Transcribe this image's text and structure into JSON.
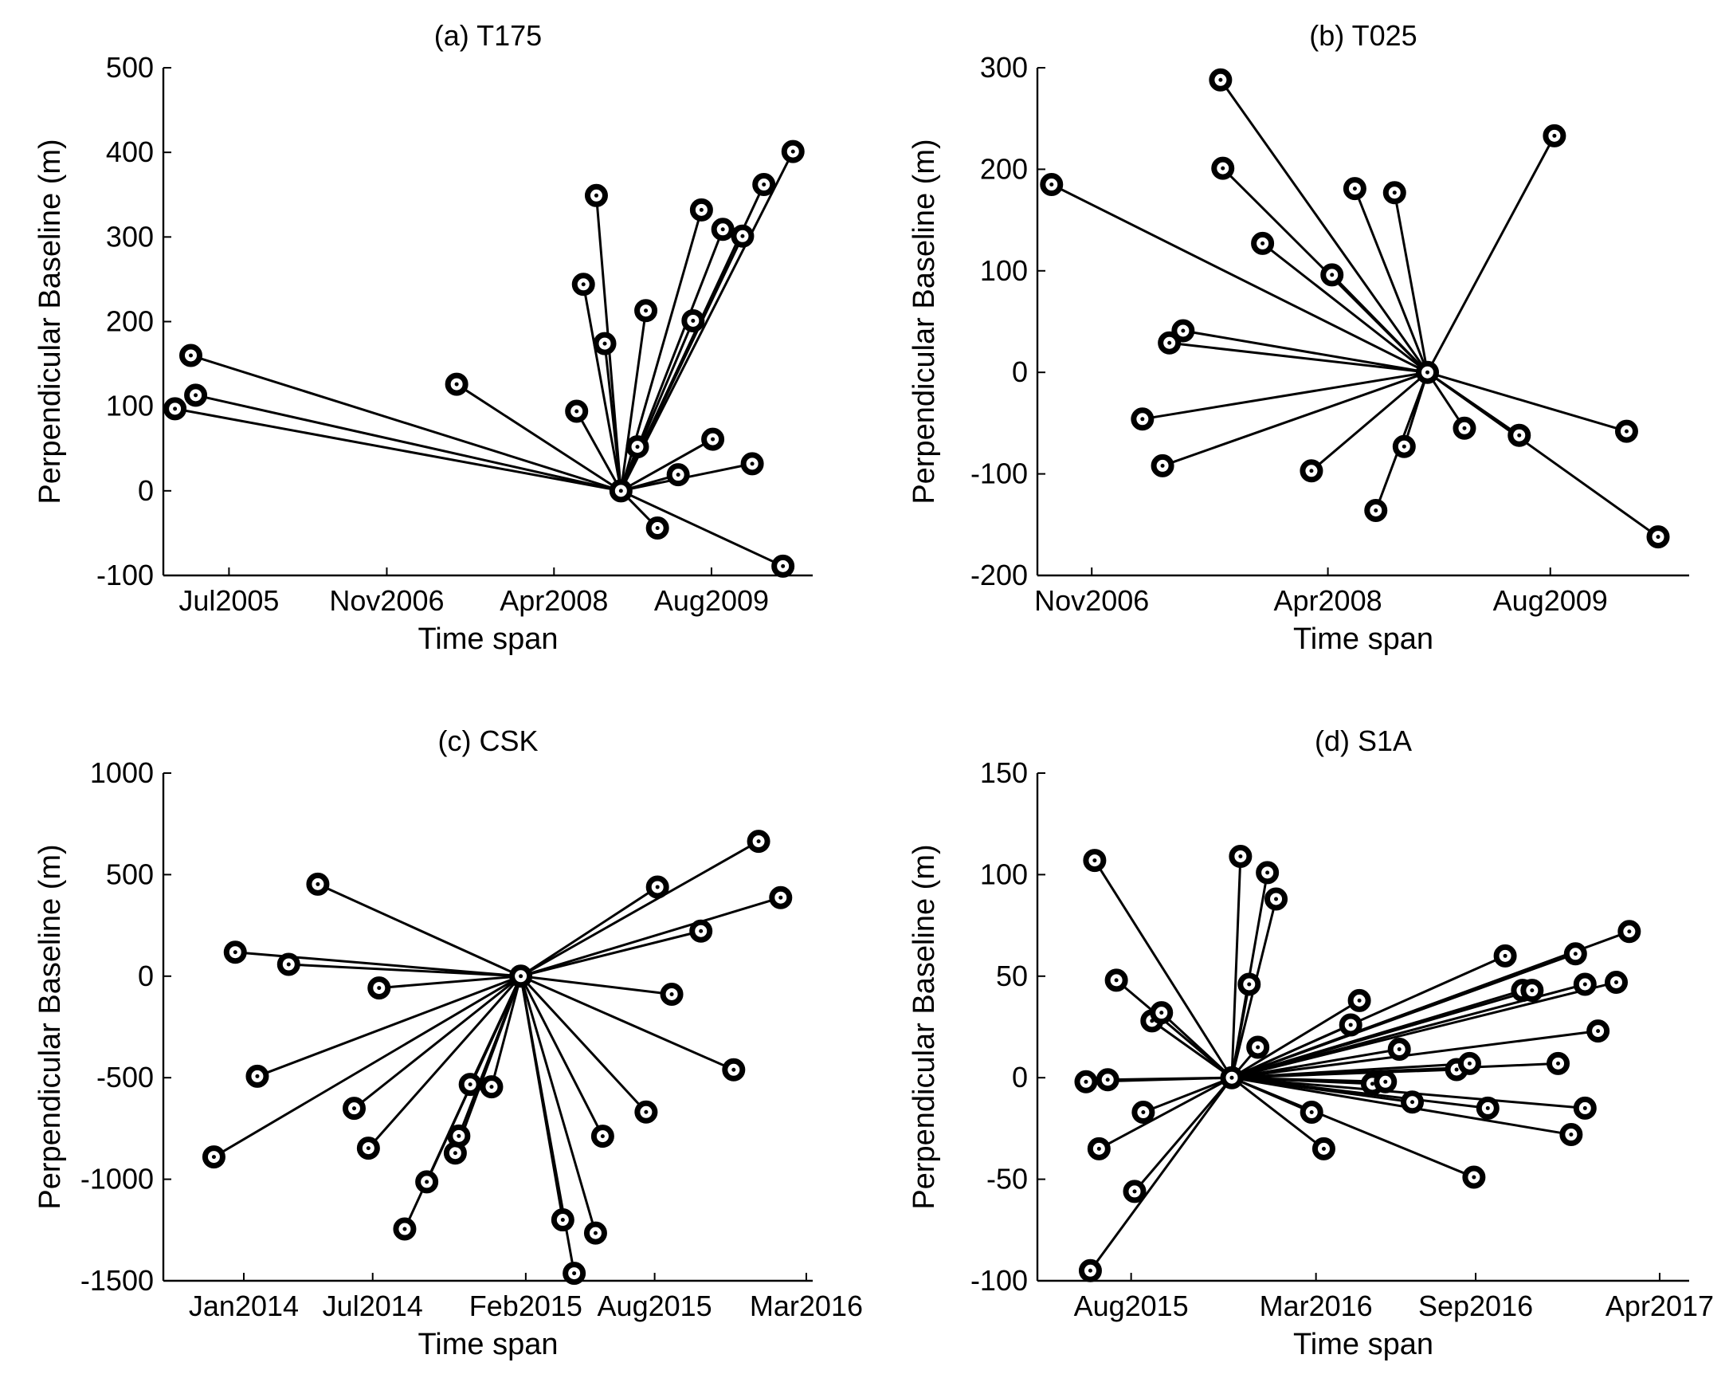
{
  "chart_data": [
    {
      "type": "scatter",
      "title": "(a) T175",
      "xlabel": "Time span",
      "ylabel": "Perpendicular Baseline (m)",
      "xticks": [
        "2005-07-01",
        "2006-11-01",
        "2008-04-01",
        "2009-08-01"
      ],
      "xtick_labels": [
        "Jul2005",
        "Nov2006",
        "Apr2008",
        "Aug2009"
      ],
      "xlim": [
        "2004-12-10",
        "2010-06-10"
      ],
      "ylim": [
        -100,
        500
      ],
      "yticks": [
        -100,
        0,
        100,
        200,
        300,
        400,
        500
      ],
      "ytick_labels": [
        "-100",
        "0",
        "100",
        "200",
        "300",
        "400",
        "500"
      ],
      "master": {
        "x": "2008-10-25",
        "y": 0
      },
      "points": [
        {
          "x": "2005-01-15",
          "y": 97
        },
        {
          "x": "2005-03-20",
          "y": 113
        },
        {
          "x": "2005-03-05",
          "y": 160
        },
        {
          "x": "2007-06-05",
          "y": 126
        },
        {
          "x": "2008-06-10",
          "y": 94
        },
        {
          "x": "2008-07-01",
          "y": 244
        },
        {
          "x": "2008-08-10",
          "y": 349
        },
        {
          "x": "2008-09-05",
          "y": 174
        },
        {
          "x": "2008-12-15",
          "y": 52
        },
        {
          "x": "2009-01-10",
          "y": 213
        },
        {
          "x": "2009-02-15",
          "y": -44
        },
        {
          "x": "2009-04-20",
          "y": 19
        },
        {
          "x": "2009-06-05",
          "y": 201
        },
        {
          "x": "2009-07-01",
          "y": 332
        },
        {
          "x": "2009-08-05",
          "y": 61
        },
        {
          "x": "2009-09-05",
          "y": 309
        },
        {
          "x": "2009-11-05",
          "y": 301
        },
        {
          "x": "2009-12-05",
          "y": 32
        },
        {
          "x": "2010-01-10",
          "y": 362
        },
        {
          "x": "2010-03-10",
          "y": -89
        },
        {
          "x": "2010-04-10",
          "y": 401
        }
      ]
    },
    {
      "type": "scatter",
      "title": "(b) T025",
      "xlabel": "Time span",
      "ylabel": "Perpendicular Baseline (m)",
      "xticks": [
        "2006-11-01",
        "2008-04-01",
        "2009-08-01"
      ],
      "xtick_labels": [
        "Nov2006",
        "Apr2008",
        "Aug2009"
      ],
      "xlim": [
        "2006-07-05",
        "2010-06-01"
      ],
      "ylim": [
        -200,
        300
      ],
      "yticks": [
        -200,
        -100,
        0,
        100,
        200,
        300
      ],
      "ytick_labels": [
        "-200",
        "-100",
        "0",
        "100",
        "200",
        "300"
      ],
      "master": {
        "x": "2008-11-05",
        "y": 0
      },
      "points": [
        {
          "x": "2006-08-05",
          "y": 185
        },
        {
          "x": "2007-02-20",
          "y": -46
        },
        {
          "x": "2007-04-05",
          "y": -92
        },
        {
          "x": "2007-04-20",
          "y": 29
        },
        {
          "x": "2007-05-20",
          "y": 41
        },
        {
          "x": "2007-08-10",
          "y": 288
        },
        {
          "x": "2007-08-15",
          "y": 201
        },
        {
          "x": "2007-11-10",
          "y": 127
        },
        {
          "x": "2008-02-25",
          "y": -97
        },
        {
          "x": "2008-04-10",
          "y": 96
        },
        {
          "x": "2008-05-30",
          "y": 181
        },
        {
          "x": "2008-07-15",
          "y": -136
        },
        {
          "x": "2008-08-25",
          "y": 177
        },
        {
          "x": "2008-09-15",
          "y": -73
        },
        {
          "x": "2009-01-25",
          "y": -55
        },
        {
          "x": "2009-05-25",
          "y": -62
        },
        {
          "x": "2009-08-10",
          "y": 233
        },
        {
          "x": "2010-01-15",
          "y": -58
        },
        {
          "x": "2010-03-25",
          "y": -162
        }
      ]
    },
    {
      "type": "scatter",
      "title": "(c) CSK",
      "xlabel": "Time span",
      "ylabel": "Perpendicular Baseline (m)",
      "xticks": [
        "2014-01-01",
        "2014-07-01",
        "2015-02-01",
        "2015-08-01",
        "2016-03-01"
      ],
      "xtick_labels": [
        "Jan2014",
        "Jul2014",
        "Feb2015",
        "Aug2015",
        "Mar2016"
      ],
      "xlim": [
        "2013-09-10",
        "2016-03-10"
      ],
      "ylim": [
        -1500,
        1000
      ],
      "yticks": [
        -1500,
        -1000,
        -500,
        0,
        500,
        1000
      ],
      "ytick_labels": [
        "-1500",
        "-1000",
        "-500",
        "0",
        "500",
        "1000"
      ],
      "master": {
        "x": "2015-01-25",
        "y": 0
      },
      "points": [
        {
          "x": "2013-11-20",
          "y": -890
        },
        {
          "x": "2013-12-20",
          "y": 118
        },
        {
          "x": "2014-01-20",
          "y": -493
        },
        {
          "x": "2014-03-05",
          "y": 58
        },
        {
          "x": "2014-04-15",
          "y": 453
        },
        {
          "x": "2014-06-05",
          "y": -651
        },
        {
          "x": "2014-06-25",
          "y": -847
        },
        {
          "x": "2014-07-10",
          "y": -58
        },
        {
          "x": "2014-08-15",
          "y": -1245
        },
        {
          "x": "2014-09-15",
          "y": -1013
        },
        {
          "x": "2014-10-25",
          "y": -871
        },
        {
          "x": "2014-10-30",
          "y": -787
        },
        {
          "x": "2014-11-15",
          "y": -533
        },
        {
          "x": "2014-12-15",
          "y": -545
        },
        {
          "x": "2015-03-25",
          "y": -1200
        },
        {
          "x": "2015-04-10",
          "y": -1463
        },
        {
          "x": "2015-05-10",
          "y": -1265
        },
        {
          "x": "2015-05-20",
          "y": -788
        },
        {
          "x": "2015-07-20",
          "y": -669
        },
        {
          "x": "2015-08-05",
          "y": 439
        },
        {
          "x": "2015-08-25",
          "y": -89
        },
        {
          "x": "2015-10-05",
          "y": 222
        },
        {
          "x": "2015-11-20",
          "y": -461
        },
        {
          "x": "2015-12-25",
          "y": 664
        },
        {
          "x": "2016-01-25",
          "y": 387
        }
      ]
    },
    {
      "type": "scatter",
      "title": "(d) S1A",
      "xlabel": "Time span",
      "ylabel": "Perpendicular Baseline (m)",
      "xticks": [
        "2015-08-01",
        "2016-03-01",
        "2016-09-01",
        "2017-04-01"
      ],
      "xtick_labels": [
        "Aug2015",
        "Mar2016",
        "Sep2016",
        "Apr2017"
      ],
      "xlim": [
        "2015-04-15",
        "2017-05-05"
      ],
      "ylim": [
        -100,
        150
      ],
      "yticks": [
        -100,
        -50,
        0,
        50,
        100,
        150
      ],
      "ytick_labels": [
        "-100",
        "-50",
        "0",
        "50",
        "100",
        "150"
      ],
      "master": {
        "x": "2015-11-25",
        "y": 0
      },
      "points": [
        {
          "x": "2015-06-10",
          "y": -2
        },
        {
          "x": "2015-06-15",
          "y": -95
        },
        {
          "x": "2015-06-20",
          "y": 107
        },
        {
          "x": "2015-06-25",
          "y": -35
        },
        {
          "x": "2015-07-05",
          "y": -1
        },
        {
          "x": "2015-07-15",
          "y": 48
        },
        {
          "x": "2015-08-05",
          "y": -56
        },
        {
          "x": "2015-08-15",
          "y": -17
        },
        {
          "x": "2015-08-25",
          "y": 28
        },
        {
          "x": "2015-09-05",
          "y": 32
        },
        {
          "x": "2015-12-05",
          "y": 109
        },
        {
          "x": "2015-12-15",
          "y": 46
        },
        {
          "x": "2015-12-25",
          "y": 15
        },
        {
          "x": "2016-01-05",
          "y": 101
        },
        {
          "x": "2016-01-15",
          "y": 88
        },
        {
          "x": "2016-02-25",
          "y": -17
        },
        {
          "x": "2016-03-10",
          "y": -35
        },
        {
          "x": "2016-04-10",
          "y": 26
        },
        {
          "x": "2016-04-20",
          "y": 38
        },
        {
          "x": "2016-05-05",
          "y": -3
        },
        {
          "x": "2016-05-20",
          "y": -2
        },
        {
          "x": "2016-06-05",
          "y": 14
        },
        {
          "x": "2016-06-20",
          "y": -12
        },
        {
          "x": "2016-08-10",
          "y": 4
        },
        {
          "x": "2016-08-25",
          "y": 7
        },
        {
          "x": "2016-08-30",
          "y": -49
        },
        {
          "x": "2016-09-15",
          "y": -15
        },
        {
          "x": "2016-10-05",
          "y": 60
        },
        {
          "x": "2016-10-25",
          "y": 43
        },
        {
          "x": "2016-11-05",
          "y": 43
        },
        {
          "x": "2016-12-05",
          "y": 7
        },
        {
          "x": "2016-12-20",
          "y": -28
        },
        {
          "x": "2016-12-25",
          "y": 61
        },
        {
          "x": "2017-01-05",
          "y": 46
        },
        {
          "x": "2017-01-05",
          "y": -15
        },
        {
          "x": "2017-01-20",
          "y": 23
        },
        {
          "x": "2017-02-10",
          "y": 47
        },
        {
          "x": "2017-02-25",
          "y": 72
        }
      ]
    }
  ]
}
